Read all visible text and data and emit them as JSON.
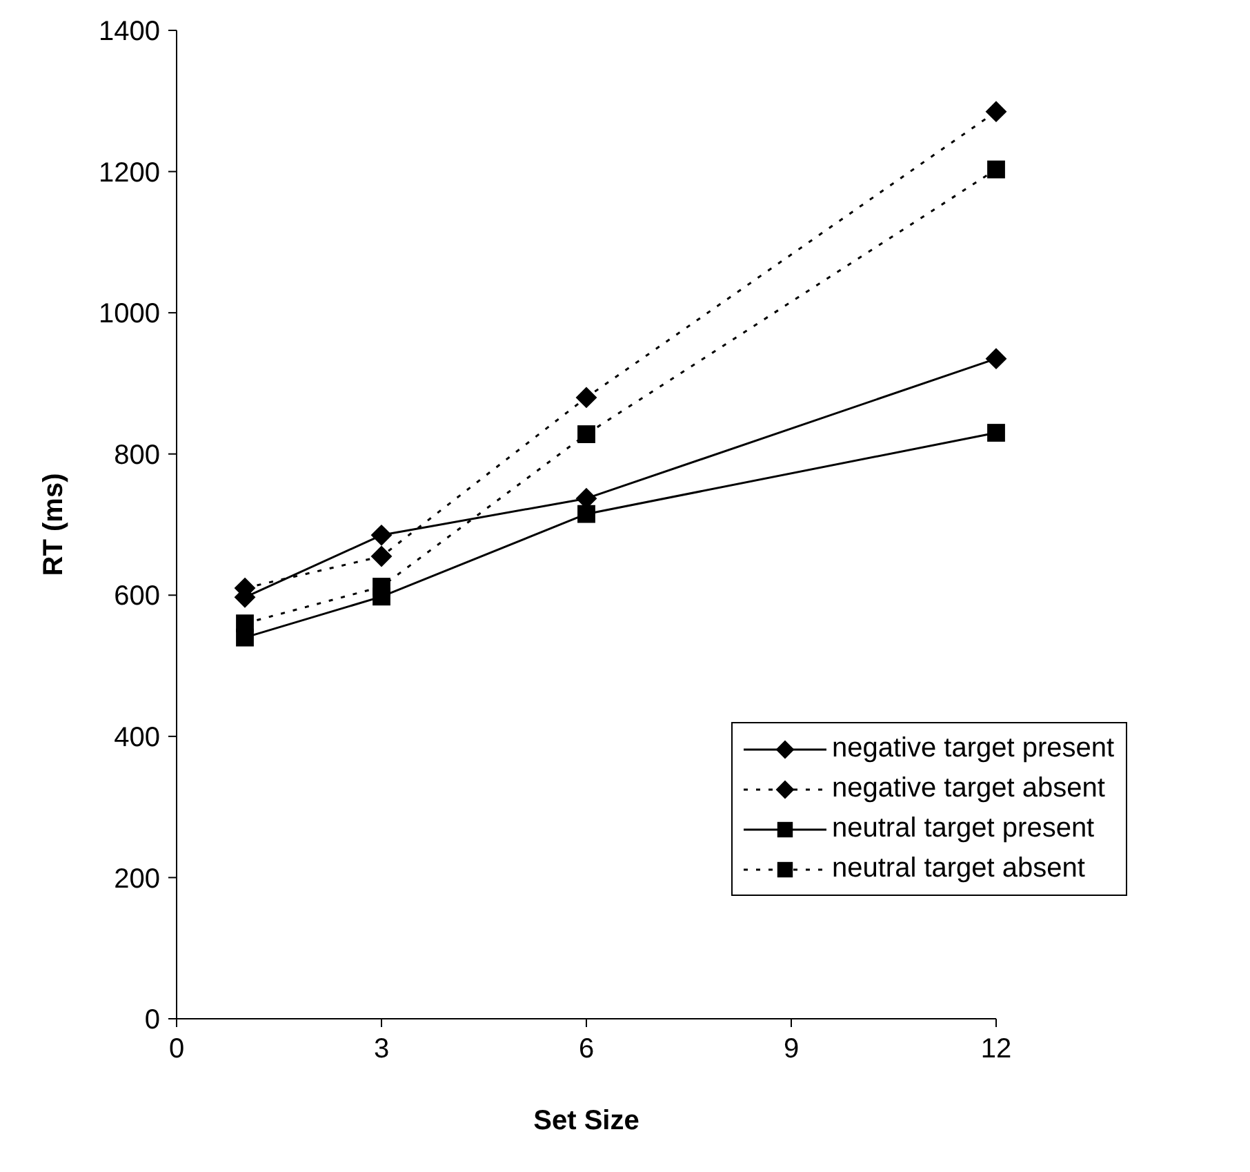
{
  "chart_data": {
    "type": "line",
    "xlabel": "Set Size",
    "ylabel": "RT (ms)",
    "x": [
      1,
      3,
      6,
      12
    ],
    "xlim": [
      0,
      12
    ],
    "xticks": [
      0,
      3,
      6,
      9,
      12
    ],
    "ylim": [
      0,
      1400
    ],
    "yticks": [
      0,
      200,
      400,
      600,
      800,
      1000,
      1200,
      1400
    ],
    "grid": false,
    "legend": "right",
    "series": [
      {
        "name": "negative target present",
        "color": "#000000",
        "marker": "diamond",
        "line_style": "solid",
        "values": [
          597,
          685,
          737,
          935
        ]
      },
      {
        "name": "negative target absent",
        "color": "#000000",
        "marker": "diamond",
        "line_style": "dotted",
        "values": [
          610,
          655,
          880,
          1285
        ]
      },
      {
        "name": "neutral target present",
        "color": "#000000",
        "marker": "square",
        "line_style": "solid",
        "values": [
          540,
          598,
          715,
          830
        ]
      },
      {
        "name": "neutral target absent",
        "color": "#000000",
        "marker": "square",
        "line_style": "dotted",
        "values": [
          560,
          612,
          828,
          1203
        ]
      }
    ]
  }
}
